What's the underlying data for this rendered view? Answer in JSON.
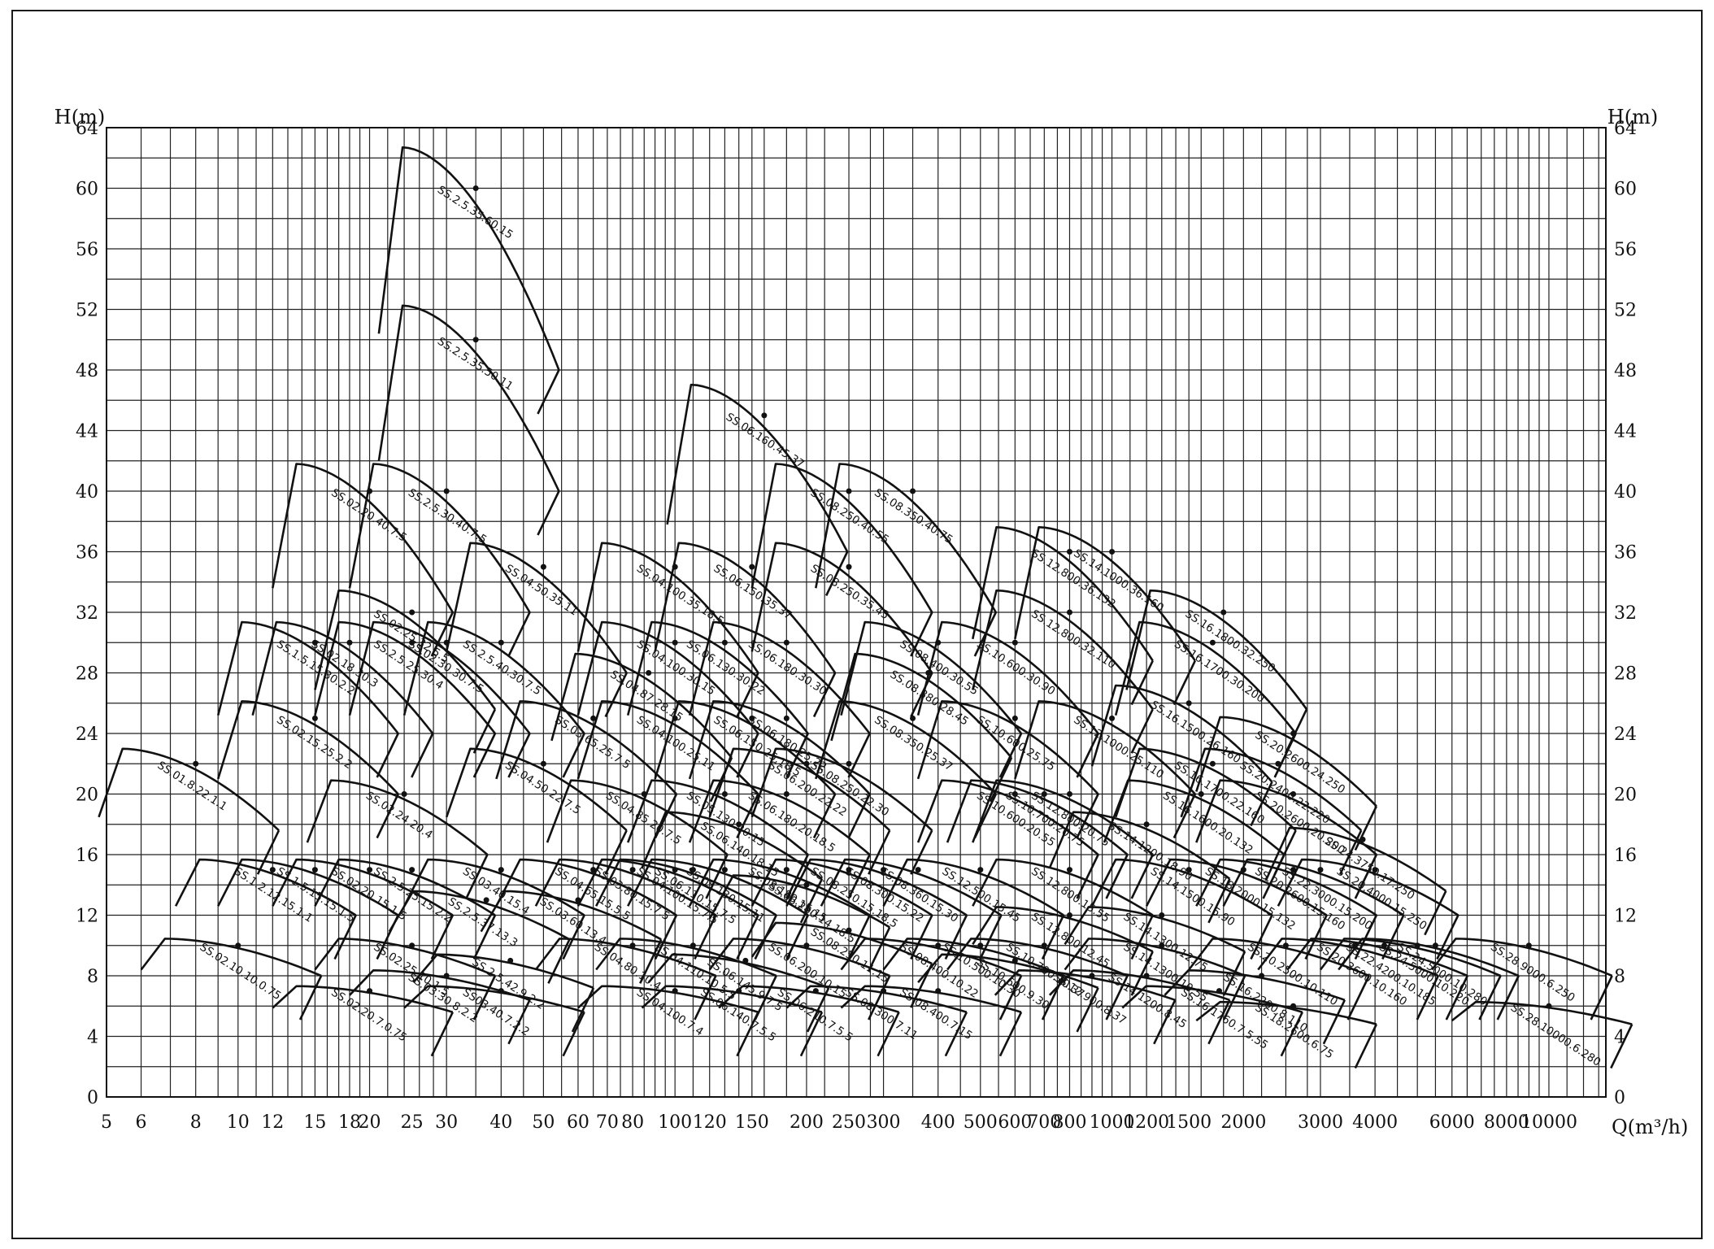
{
  "chart_data": {
    "type": "line",
    "title": "",
    "ylabel_left": "H(m)",
    "ylabel_right": "H(m)",
    "xlabel": "Q(m³/h)",
    "x_scale": "log",
    "xlim": [
      5,
      13500
    ],
    "ylim": [
      0,
      64
    ],
    "y_ticks": [
      0,
      4,
      8,
      12,
      16,
      20,
      24,
      28,
      32,
      36,
      40,
      44,
      48,
      52,
      56,
      60,
      64
    ],
    "y_tick_labels": [
      "0",
      "4",
      "8",
      "12",
      "16",
      "20",
      "24",
      "28",
      "32",
      "36",
      "40",
      "44",
      "48",
      "52",
      "56",
      "60",
      "64"
    ],
    "x_ticks": [
      5,
      6,
      8,
      10,
      12,
      15,
      18,
      20,
      25,
      30,
      40,
      50,
      60,
      70,
      80,
      100,
      120,
      150,
      200,
      250,
      300,
      400,
      500,
      600,
      700,
      800,
      1000,
      1200,
      1500,
      2000,
      3000,
      4000,
      6000,
      8000,
      10000
    ],
    "x_tick_labels": [
      "5",
      "6",
      "8",
      "10",
      "12",
      "15",
      "18",
      "20",
      "25",
      "30",
      "40",
      "50",
      "60",
      "70",
      "80",
      "100",
      "120",
      "150",
      "200",
      "250",
      "300",
      "400",
      "500",
      "600",
      "700",
      "800",
      "1000",
      "1200",
      "1500",
      "2000",
      "3000",
      "4000",
      "6000",
      "8000",
      "10000"
    ],
    "x_gridlines": [
      5,
      6,
      7,
      8,
      9,
      10,
      11,
      12,
      13,
      14,
      15,
      16,
      17,
      18,
      19,
      20,
      22,
      24,
      26,
      28,
      30,
      35,
      40,
      45,
      50,
      55,
      60,
      65,
      70,
      75,
      80,
      85,
      90,
      95,
      100,
      110,
      120,
      130,
      140,
      150,
      160,
      180,
      200,
      220,
      250,
      280,
      300,
      350,
      400,
      450,
      500,
      550,
      600,
      650,
      700,
      750,
      800,
      850,
      900,
      950,
      1000,
      1100,
      1200,
      1300,
      1400,
      1500,
      1600,
      1800,
      2000,
      2200,
      2500,
      2800,
      3000,
      3500,
      4000,
      4500,
      5000,
      5500,
      6000,
      6500,
      7000,
      7500,
      8000,
      8500,
      9000,
      9500,
      10000,
      11000,
      12000,
      13000
    ],
    "y_gridlines": [
      0,
      2,
      4,
      6,
      8,
      10,
      12,
      14,
      16,
      18,
      20,
      22,
      24,
      26,
      28,
      30,
      32,
      34,
      36,
      38,
      40,
      42,
      44,
      46,
      48,
      50,
      52,
      54,
      56,
      58,
      60,
      62,
      64
    ],
    "grid": true,
    "series": [
      {
        "name": "SS.2.5.35.60.15",
        "q": 35,
        "h": 60
      },
      {
        "name": "SS.2.5.35.50.11",
        "q": 35,
        "h": 50
      },
      {
        "name": "SS.06.160.45.37",
        "q": 160,
        "h": 45
      },
      {
        "name": "SS.08.350.40.75",
        "q": 350,
        "h": 40
      },
      {
        "name": "SS.08.250.40.55",
        "q": 250,
        "h": 40
      },
      {
        "name": "SS.2.5.30.40.7.5",
        "q": 30,
        "h": 40
      },
      {
        "name": "SS.02.20.40.7.5",
        "q": 20,
        "h": 40
      },
      {
        "name": "SS.04.50.35.11",
        "q": 50,
        "h": 35
      },
      {
        "name": "SS.04.100.35.18.5",
        "q": 100,
        "h": 35
      },
      {
        "name": "SS.06.150.35.37",
        "q": 150,
        "h": 35
      },
      {
        "name": "SS.08.250.35.45",
        "q": 250,
        "h": 35
      },
      {
        "name": "SS.14.1000.36.160",
        "q": 1000,
        "h": 36
      },
      {
        "name": "SS.12.800.36.132",
        "q": 800,
        "h": 36
      },
      {
        "name": "SS.12.800.32.110",
        "q": 800,
        "h": 32
      },
      {
        "name": "SS.16.1800.32.250",
        "q": 1800,
        "h": 32
      },
      {
        "name": "SS.16.1700.30.200",
        "q": 1700,
        "h": 30
      },
      {
        "name": "SS.02.25.32.5.5",
        "q": 25,
        "h": 32
      },
      {
        "name": "SS.1.5.15.30.2.2",
        "q": 15,
        "h": 30
      },
      {
        "name": "SS.02.18.30.3",
        "q": 18,
        "h": 30
      },
      {
        "name": "SS.2.5.25.30.4",
        "q": 25,
        "h": 30
      },
      {
        "name": "SS.02.30.30.7.5",
        "q": 30,
        "h": 30
      },
      {
        "name": "SS.2.5.40.30.7.5",
        "q": 40,
        "h": 30
      },
      {
        "name": "SS.04.100.30.15",
        "q": 100,
        "h": 30
      },
      {
        "name": "SS.04.87.28.15",
        "q": 87,
        "h": 28
      },
      {
        "name": "SS.06.130.30.22",
        "q": 130,
        "h": 30
      },
      {
        "name": "SS.06.180.30.30",
        "q": 180,
        "h": 30
      },
      {
        "name": "SS.08.400.30.55",
        "q": 400,
        "h": 30
      },
      {
        "name": "SS.10.600.30.90",
        "q": 600,
        "h": 30
      },
      {
        "name": "SS.08.380.28.45",
        "q": 380,
        "h": 28
      },
      {
        "name": "SS.04.100.25.11",
        "q": 100,
        "h": 25
      },
      {
        "name": "SS.03.65.25.7.5",
        "q": 65,
        "h": 25
      },
      {
        "name": "SS.06.150.25.18.5",
        "q": 150,
        "h": 25
      },
      {
        "name": "SS.06.180.25.22",
        "q": 180,
        "h": 25
      },
      {
        "name": "SS.08.350.25.37",
        "q": 350,
        "h": 25
      },
      {
        "name": "SS.10.600.25.75",
        "q": 600,
        "h": 25
      },
      {
        "name": "SS.16.1500.26.160",
        "q": 1500,
        "h": 26
      },
      {
        "name": "SS.12.1000.25.110",
        "q": 1000,
        "h": 25
      },
      {
        "name": "SS.20.2600.24.250",
        "q": 2600,
        "h": 24
      },
      {
        "name": "SS.20.2400.22.220",
        "q": 2400,
        "h": 22
      },
      {
        "name": "SS.16.1700.22.160",
        "q": 1700,
        "h": 22
      },
      {
        "name": "SS.02.15.25.2.2",
        "q": 15,
        "h": 25
      },
      {
        "name": "SS.01.8.22.1.1",
        "q": 8,
        "h": 22
      },
      {
        "name": "SS.04.50.22.7.5",
        "q": 50,
        "h": 22
      },
      {
        "name": "SS.06.200.22.22",
        "q": 200,
        "h": 22
      },
      {
        "name": "SS.08.250.22.30",
        "q": 250,
        "h": 22
      },
      {
        "name": "SS.06.180.20.18.5",
        "q": 180,
        "h": 20
      },
      {
        "name": "SS.05.130.20.15",
        "q": 130,
        "h": 20
      },
      {
        "name": "SS.04.85.20.7.5",
        "q": 85,
        "h": 20
      },
      {
        "name": "SS.02.24.20.4",
        "q": 24,
        "h": 20
      },
      {
        "name": "SS.10.600.20.55",
        "q": 600,
        "h": 20
      },
      {
        "name": "SS.10.700.20.75",
        "q": 700,
        "h": 20
      },
      {
        "name": "SS.12.800.20.75",
        "q": 800,
        "h": 20
      },
      {
        "name": "SS.16.1600.20.132",
        "q": 1600,
        "h": 20
      },
      {
        "name": "SS.20.2600.20.200",
        "q": 2600,
        "h": 20
      },
      {
        "name": "SS.14.1200.18.90",
        "q": 1200,
        "h": 18
      },
      {
        "name": "SS.06.140.18.15",
        "q": 140,
        "h": 18
      },
      {
        "name": "SS.24.3750.17.250",
        "q": 3750,
        "h": 17
      },
      {
        "name": "SS.1.2.12.15.1.1",
        "q": 12,
        "h": 15
      },
      {
        "name": "SS.1.5.15.15.1.5",
        "q": 15,
        "h": 15
      },
      {
        "name": "SS.2.5.25.15.2.2",
        "q": 25,
        "h": 15
      },
      {
        "name": "SS.02.20.15.1.5",
        "q": 20,
        "h": 15
      },
      {
        "name": "SS.03.40.15.4",
        "q": 40,
        "h": 15
      },
      {
        "name": "SS.2.5.37.13.3",
        "q": 37,
        "h": 13
      },
      {
        "name": "SS.03.60.13.4",
        "q": 60,
        "h": 13
      },
      {
        "name": "SS.04.65.15.5.5",
        "q": 65,
        "h": 15
      },
      {
        "name": "SS.03.80.15.7.5",
        "q": 80,
        "h": 15
      },
      {
        "name": "SS.04.100.15.7.5",
        "q": 100,
        "h": 15
      },
      {
        "name": "SS.06.110.15.7.5",
        "q": 110,
        "h": 15
      },
      {
        "name": "SS.05.130.15.11",
        "q": 130,
        "h": 15
      },
      {
        "name": "SS.08.180.15.15",
        "q": 180,
        "h": 15
      },
      {
        "name": "SS.06.200.14.18.5",
        "q": 200,
        "h": 14
      },
      {
        "name": "SS.08.250.15.18.5",
        "q": 250,
        "h": 15
      },
      {
        "name": "SS.08.300.15.22",
        "q": 300,
        "h": 15
      },
      {
        "name": "SS.08.360.15.30",
        "q": 360,
        "h": 15
      },
      {
        "name": "SS.12.500.15.45",
        "q": 500,
        "h": 15
      },
      {
        "name": "SS.12.800.15.55",
        "q": 800,
        "h": 15
      },
      {
        "name": "SS.14.1500.15.90",
        "q": 1500,
        "h": 15
      },
      {
        "name": "SS.18.2000.15.132",
        "q": 2000,
        "h": 15
      },
      {
        "name": "SS.20.2600.15.160",
        "q": 2600,
        "h": 15
      },
      {
        "name": "SS.22.3000.15.200",
        "q": 3000,
        "h": 15
      },
      {
        "name": "SS.20.4000.15.250",
        "q": 4000,
        "h": 15
      },
      {
        "name": "SS.14.1300.12.75",
        "q": 1300,
        "h": 12
      },
      {
        "name": "SS.12.800.12.45",
        "q": 800,
        "h": 12
      },
      {
        "name": "SS.02.10.10.0.75",
        "q": 10,
        "h": 10
      },
      {
        "name": "SS.02.25.10.1.5",
        "q": 25,
        "h": 10
      },
      {
        "name": "SS.2.5.42.9.2.2",
        "q": 42,
        "h": 9
      },
      {
        "name": "SS.04.80.10.4",
        "q": 80,
        "h": 10
      },
      {
        "name": "SS.04.110.10.5.5",
        "q": 110,
        "h": 10
      },
      {
        "name": "SS.06.200.10.15",
        "q": 200,
        "h": 10
      },
      {
        "name": "SS.06.145.9.7.5",
        "q": 145,
        "h": 9
      },
      {
        "name": "SS.08.250.11.15",
        "q": 250,
        "h": 11
      },
      {
        "name": "SS.10.500.10.30",
        "q": 500,
        "h": 10
      },
      {
        "name": "SS.08.400.10.22",
        "q": 400,
        "h": 10
      },
      {
        "name": "SS.10.700.10.37",
        "q": 700,
        "h": 10
      },
      {
        "name": "SS.14.1300.10.55",
        "q": 1300,
        "h": 10
      },
      {
        "name": "SS.20.2500.10.110",
        "q": 2500,
        "h": 10
      },
      {
        "name": "SS.20.3600.10.160",
        "q": 3600,
        "h": 10
      },
      {
        "name": "SS.24.5000.10.220",
        "q": 5000,
        "h": 10
      },
      {
        "name": "SS.24.5000.10.280",
        "q": 5500,
        "h": 10
      },
      {
        "name": "SS.28.9000.6.250",
        "q": 9000,
        "h": 10
      },
      {
        "name": "SS.16.2200.8.110",
        "q": 2200,
        "h": 8
      },
      {
        "name": "SS.18.2600.6.75",
        "q": 2600,
        "h": 6
      },
      {
        "name": "SS.22.4200.10.185",
        "q": 4200,
        "h": 10
      },
      {
        "name": "SS.02.20.7.0.75",
        "q": 20,
        "h": 7
      },
      {
        "name": "SS.03.30.8.2.2",
        "q": 30,
        "h": 8
      },
      {
        "name": "SS03.40.7.2.2",
        "q": 40,
        "h": 7
      },
      {
        "name": "SS.04.100.7.4",
        "q": 100,
        "h": 7
      },
      {
        "name": "SS.06.140.7.5.5",
        "q": 140,
        "h": 7
      },
      {
        "name": "SS.06.210.7.5.5",
        "q": 210,
        "h": 7
      },
      {
        "name": "SS.08.300.7.11",
        "q": 300,
        "h": 7
      },
      {
        "name": "SS.08.400.7.15",
        "q": 400,
        "h": 7
      },
      {
        "name": "SS.10.600.9.30",
        "q": 600,
        "h": 9
      },
      {
        "name": "SS.14.1200.8.45",
        "q": 1200,
        "h": 8
      },
      {
        "name": "SS.12.900.8.37",
        "q": 900,
        "h": 8
      },
      {
        "name": "SS.16.1760.7.5.55",
        "q": 1760,
        "h": 7
      },
      {
        "name": "SS.28.10000.6.280",
        "q": 10000,
        "h": 6
      }
    ]
  }
}
